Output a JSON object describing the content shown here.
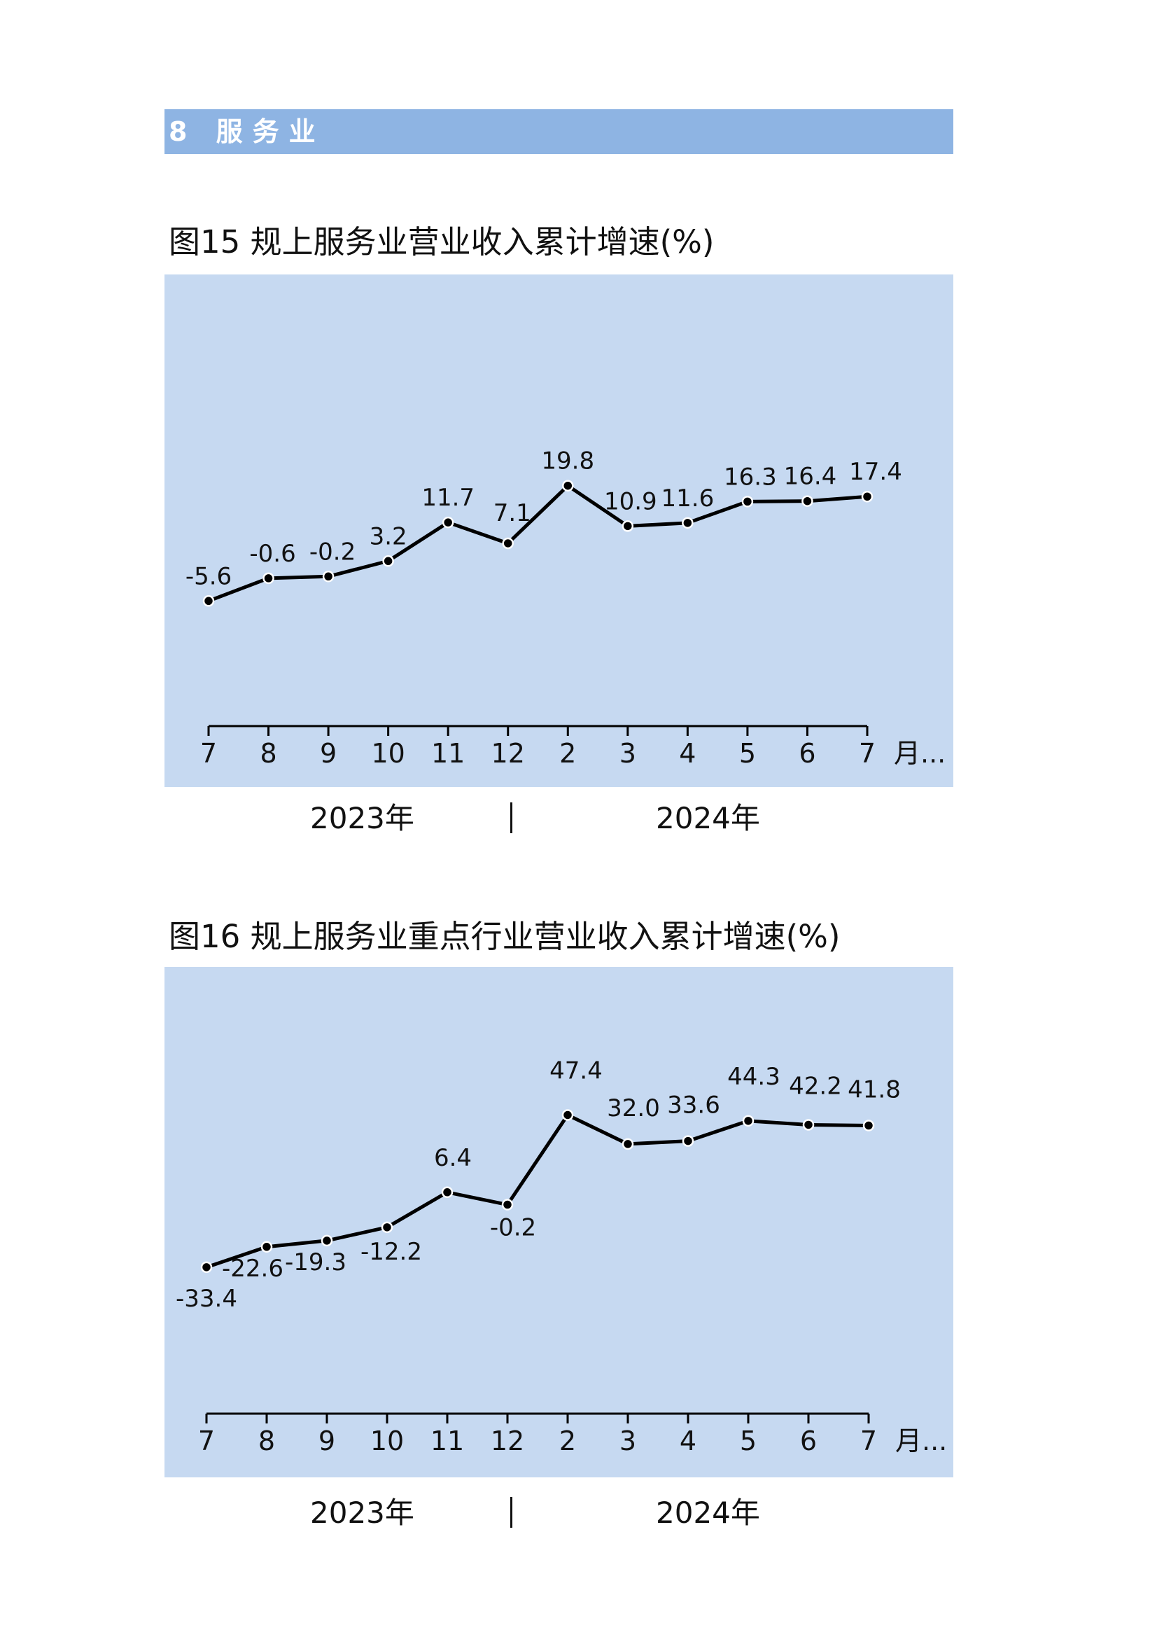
{
  "section": {
    "title": "8  服务业"
  },
  "chart_data": [
    {
      "type": "line",
      "title": "图15  规上服务业营业收入累计增速(%)",
      "categories": [
        "7",
        "8",
        "9",
        "10",
        "11",
        "12",
        "2",
        "3",
        "4",
        "5",
        "6",
        "7"
      ],
      "x_unit": "月...",
      "group_labels": [
        "2023年",
        "2024年"
      ],
      "series": [
        {
          "values": [
            -5.6,
            -0.6,
            -0.2,
            3.2,
            11.7,
            7.1,
            19.8,
            10.9,
            11.6,
            16.3,
            16.4,
            17.4
          ]
        }
      ],
      "colors": {
        "line": "#000000",
        "background": "#c6d9f1",
        "point_fill": "#000000"
      },
      "grid": false
    },
    {
      "type": "line",
      "title": "图16  规上服务业重点行业营业收入累计增速(%)",
      "categories": [
        "7",
        "8",
        "9",
        "10",
        "11",
        "12",
        "2",
        "3",
        "4",
        "5",
        "6",
        "7"
      ],
      "x_unit": "月...",
      "group_labels": [
        "2023年",
        "2024年"
      ],
      "series": [
        {
          "values": [
            -33.4,
            -22.6,
            -19.3,
            -12.2,
            6.4,
            -0.2,
            47.4,
            32.0,
            33.6,
            44.3,
            42.2,
            41.8
          ]
        }
      ],
      "colors": {
        "line": "#000000",
        "background": "#c6d9f1",
        "point_fill": "#000000"
      },
      "grid": false
    }
  ]
}
